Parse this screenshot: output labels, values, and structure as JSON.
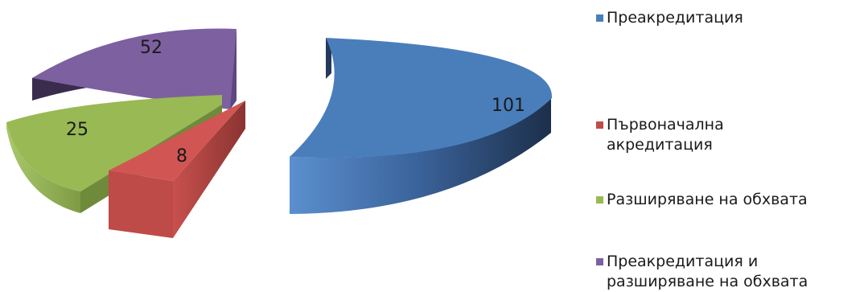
{
  "chart_data": {
    "type": "pie",
    "categories": [
      "Преакредитация",
      "Първоначална\nакредитация",
      "Разширяване на обхвата",
      "Преакредитация и\nразширяване на обхвата"
    ],
    "values": [
      101,
      8,
      25,
      52
    ],
    "colors": [
      "#4a7ebb",
      "#be4b48",
      "#98b954",
      "#7d60a0"
    ],
    "title": "",
    "legend_position": "right",
    "style": "3d-exploded"
  }
}
